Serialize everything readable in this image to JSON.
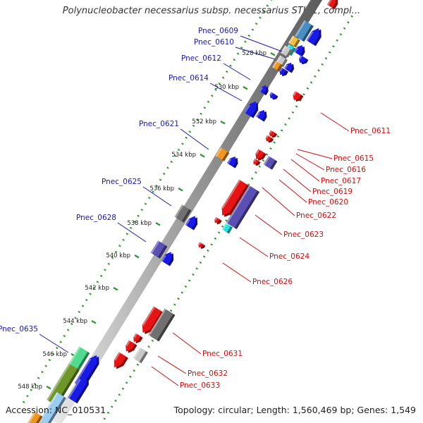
{
  "title": "Polynucleobacter necessarius subsp. necessarius STIR1, compl...",
  "footer": {
    "accession": "Accession: NC_010531",
    "topology": "Topology: circular; Length: 1,560,469 bp; Genes: 1,549"
  },
  "colors": {
    "forward_label": "#1a1aa8",
    "reverse_label": "#cc1111",
    "backbone": "#8c8c8c",
    "tick": "#2a9a2a",
    "gene_blue": "#1a1ae6",
    "gene_red": "#e61414",
    "gene_orange": "#f0961e",
    "gene_gray": "#707070",
    "gene_lightgray": "#c8c8c8",
    "gene_purple": "#5a50b4",
    "gene_cyan": "#1ee6e6",
    "gene_green": "#50dc8c",
    "gene_olive": "#6e9628"
  },
  "ticks": [
    "528 kbp",
    "530 kbp",
    "532 kbp",
    "534 kbp",
    "536 kbp",
    "538 kbp",
    "540 kbp",
    "542 kbp",
    "544 kbp",
    "546 kbp",
    "548 kbp"
  ],
  "forward_labels": [
    "Pnec_0609",
    "Pnec_0610",
    "Pnec_0612",
    "Pnec_0614",
    "Pnec_0621",
    "Pnec_0625",
    "Pnec_0628",
    "Pnec_0635"
  ],
  "reverse_labels": [
    "Pnec_0611",
    "Pnec_0615",
    "Pnec_0616",
    "Pnec_0617",
    "Pnec_0619",
    "Pnec_0620",
    "Pnec_0622",
    "Pnec_0623",
    "Pnec_0624",
    "Pnec_0626",
    "Pnec_0631",
    "Pnec_0632",
    "Pnec_0633"
  ]
}
